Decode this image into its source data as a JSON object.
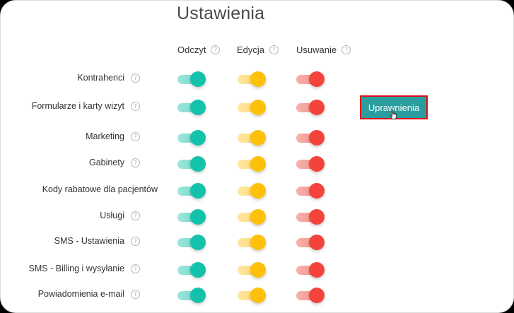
{
  "page": {
    "title": "Ustawienia"
  },
  "columns": [
    {
      "key": "read",
      "label": "Odczyt",
      "has_help": true
    },
    {
      "key": "edit",
      "label": "Edycja",
      "has_help": true
    },
    {
      "key": "delete",
      "label": "Usuwanie",
      "has_help": true
    }
  ],
  "help_glyph": "?",
  "colors": {
    "read": "#14c2ac",
    "edit": "#ffc00a",
    "delete": "#f4433a",
    "button_bg": "#2a9d9f",
    "button_border": "#e00d1a"
  },
  "rows": [
    {
      "label": "Kontrahenci",
      "has_help": true,
      "read": true,
      "edit": true,
      "delete": true
    },
    {
      "label": "Formularze i karty wizyt",
      "has_help": true,
      "read": true,
      "edit": true,
      "delete": true
    },
    {
      "label": "Marketing",
      "has_help": true,
      "read": true,
      "edit": true,
      "delete": true
    },
    {
      "label": "Gabinety",
      "has_help": true,
      "read": true,
      "edit": true,
      "delete": true
    },
    {
      "label": "Kody rabatowe dla pacjentów",
      "has_help": false,
      "read": true,
      "edit": true,
      "delete": true
    },
    {
      "label": "Usługi",
      "has_help": true,
      "read": true,
      "edit": true,
      "delete": true
    },
    {
      "label": "SMS - Ustawienia",
      "has_help": true,
      "read": true,
      "edit": true,
      "delete": true
    },
    {
      "label": "SMS - Billing i wysyłanie",
      "has_help": true,
      "read": true,
      "edit": true,
      "delete": true
    },
    {
      "label": "Powiadomienia e-mail",
      "has_help": true,
      "read": true,
      "edit": true,
      "delete": true
    }
  ],
  "permissions_button": {
    "label": "Uprawnienia",
    "row_index": 1
  }
}
